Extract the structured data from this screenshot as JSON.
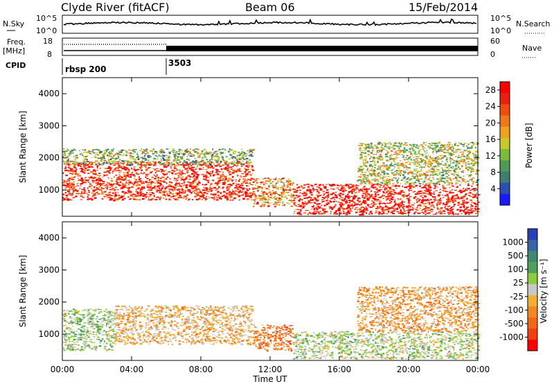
{
  "header": {
    "station": "Clyde River (fitACF)",
    "beam": "Beam 06",
    "date": "15/Feb/2014"
  },
  "top_panels": {
    "nsky_label": "N.Sky",
    "nsky_ticks": [
      "10^5",
      "10^0"
    ],
    "nsearch_label": "N.Search",
    "nsearch_ticks": [
      "10^5",
      "10^0"
    ],
    "freq_label": "Freq.",
    "freq_unit": "[MHz]",
    "freq_ticks": [
      "18",
      "8"
    ],
    "nave_label": "Nave",
    "nave_ticks": [
      "60",
      "0"
    ],
    "cpid_label": "CPID",
    "cpid_entries": [
      {
        "label": "rbsp 200",
        "start_hour": 0
      },
      {
        "label": "3503",
        "start_hour": 6
      }
    ]
  },
  "colors": {
    "power_scale": [
      "#1a1aff",
      "#2a4fb0",
      "#3f7f6f",
      "#4f9a55",
      "#7cbc3c",
      "#c8c82a",
      "#f0a020",
      "#f07818",
      "#f04c10",
      "#e82010",
      "#ff0000"
    ],
    "velocity_scale": [
      "#2a3fb0",
      "#3a64a8",
      "#3f8a6f",
      "#4fa05a",
      "#8ccc40",
      "#c8c8c8",
      "#f0b030",
      "#f08a20",
      "#f06818",
      "#f04010",
      "#ff0000"
    ]
  },
  "chart_data": [
    {
      "type": "heatmap",
      "title": "",
      "xlabel": "Time UT",
      "ylabel": "Slant Range [km]",
      "x_ticks": [
        "00:00",
        "04:00",
        "08:00",
        "12:00",
        "16:00",
        "20:00",
        "00:00"
      ],
      "xlim_hours": [
        0,
        24
      ],
      "y_ticks": [
        1000,
        2000,
        3000,
        4000
      ],
      "ylim": [
        180,
        4500
      ],
      "colorbar": {
        "label": "Power [dB]",
        "ticks": [
          4,
          8,
          12,
          16,
          20,
          24,
          28
        ],
        "range": [
          0,
          30
        ]
      },
      "regions": [
        {
          "t0": 0,
          "t1": 11,
          "r0": 700,
          "r1": 1900,
          "value": 26
        },
        {
          "t0": 0,
          "t1": 11,
          "r0": 1800,
          "r1": 2300,
          "value": 12
        },
        {
          "t0": 11,
          "t1": 13.3,
          "r0": 500,
          "r1": 1400,
          "value": 20
        },
        {
          "t0": 13.3,
          "t1": 24,
          "r0": 250,
          "r1": 1200,
          "value": 28
        },
        {
          "t0": 17,
          "t1": 24,
          "r0": 1200,
          "r1": 2500,
          "value": 14
        }
      ]
    },
    {
      "type": "heatmap",
      "title": "",
      "xlabel": "Time UT",
      "ylabel": "Slant Range [km]",
      "x_ticks": [
        "00:00",
        "04:00",
        "08:00",
        "12:00",
        "16:00",
        "20:00",
        "00:00"
      ],
      "xlim_hours": [
        0,
        24
      ],
      "y_ticks": [
        1000,
        2000,
        3000,
        4000
      ],
      "ylim": [
        180,
        4500
      ],
      "colorbar": {
        "label": "Velocity [m s⁻¹]",
        "ticks": [
          1000,
          500,
          100,
          25,
          -25,
          -100,
          -500,
          -1000
        ],
        "range": [
          -1000,
          1000
        ]
      },
      "regions": [
        {
          "t0": 0,
          "t1": 3,
          "r0": 500,
          "r1": 1800,
          "value": 150
        },
        {
          "t0": 3,
          "t1": 11,
          "r0": 700,
          "r1": 1900,
          "value": -200
        },
        {
          "t0": 11,
          "t1": 13.3,
          "r0": 500,
          "r1": 1300,
          "value": -500
        },
        {
          "t0": 13.3,
          "t1": 24,
          "r0": 250,
          "r1": 1100,
          "value": 100
        },
        {
          "t0": 17,
          "t1": 24,
          "r0": 1100,
          "r1": 2500,
          "value": -300
        }
      ]
    }
  ]
}
